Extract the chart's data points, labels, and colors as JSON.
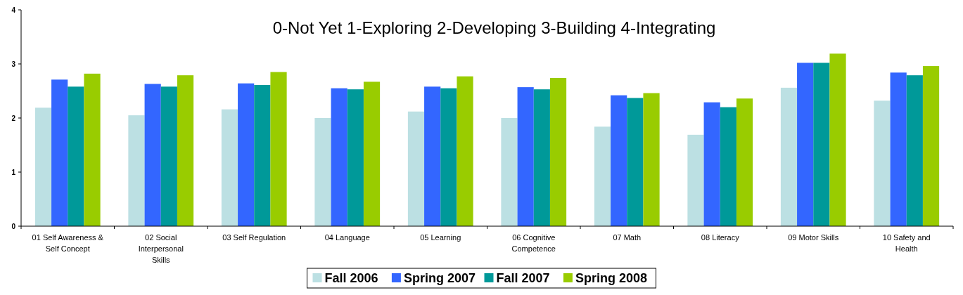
{
  "chart_data": {
    "type": "bar",
    "title": "0-Not Yet 1-Exploring 2-Developing 3-Building 4-Integrating",
    "categories": [
      "01 Self Awareness & Self Concept",
      "02 Social Interpersonal Skills",
      "03 Self Regulation",
      "04 Language",
      "05 Learning",
      "06 Cognitive Competence",
      "07 Math",
      "08 Literacy",
      "09 Motor Skills",
      "10 Safety and Health"
    ],
    "series": [
      {
        "name": "Fall 2006",
        "color": "#bce0e3",
        "values": [
          2.19,
          2.05,
          2.16,
          2.0,
          2.12,
          2.0,
          1.84,
          1.69,
          2.56,
          2.32
        ]
      },
      {
        "name": "Spring 2007",
        "color": "#3366ff",
        "values": [
          2.71,
          2.63,
          2.64,
          2.55,
          2.58,
          2.57,
          2.42,
          2.29,
          3.02,
          2.84
        ]
      },
      {
        "name": "Fall 2007",
        "color": "#009999",
        "values": [
          2.58,
          2.58,
          2.61,
          2.53,
          2.55,
          2.53,
          2.37,
          2.2,
          3.02,
          2.79
        ]
      },
      {
        "name": "Spring 2008",
        "color": "#99cc00",
        "values": [
          2.82,
          2.79,
          2.85,
          2.67,
          2.77,
          2.74,
          2.46,
          2.36,
          3.19,
          2.96
        ]
      }
    ],
    "ylim": [
      0,
      4
    ],
    "yticks": [
      0,
      1,
      2,
      3,
      4
    ],
    "grid": false,
    "legend": "bottom"
  }
}
